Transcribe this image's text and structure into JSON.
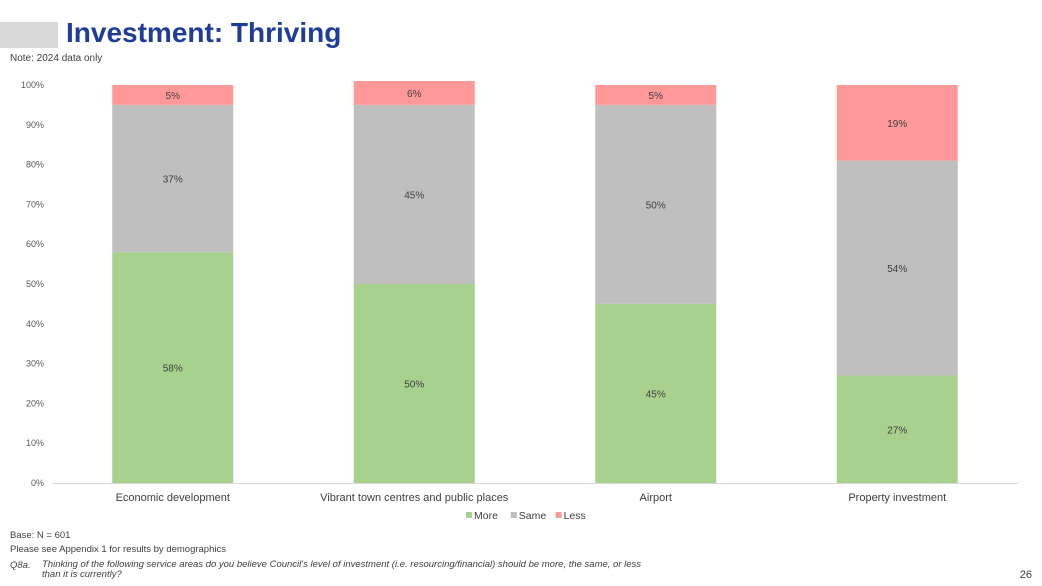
{
  "slide": {
    "title": "Investment: Thriving",
    "note": "Note: 2024 data only",
    "base": "Base: N = 601",
    "appendix": "Please see Appendix 1 for results by demographics",
    "question_code": "Q8a.",
    "question_text": "Thinking of the following service areas do you believe Council's level of investment (i.e. resourcing/financial) should be more, the same, or less than it is currently?",
    "page_number": "26"
  },
  "chart_data": {
    "type": "bar",
    "stacked": true,
    "categories": [
      "Economic development",
      "Vibrant town centres and public places",
      "Airport",
      "Property investment"
    ],
    "series": [
      {
        "name": "More",
        "values": [
          58,
          50,
          45,
          27
        ],
        "labels": [
          "58%",
          "50%",
          "45%",
          "27%"
        ],
        "color": "#a9d18e"
      },
      {
        "name": "Same",
        "values": [
          37,
          45,
          50,
          54
        ],
        "labels": [
          "37%",
          "45%",
          "50%",
          "54%"
        ],
        "color": "#bfbfbf"
      },
      {
        "name": "Less",
        "values": [
          5,
          6,
          5,
          19
        ],
        "labels": [
          "5%",
          "6%",
          "5%",
          "19%"
        ],
        "color": "#ff9999"
      }
    ],
    "yticks": [
      "0%",
      "10%",
      "20%",
      "30%",
      "40%",
      "50%",
      "60%",
      "70%",
      "80%",
      "90%",
      "100%"
    ],
    "ylim": [
      0,
      100
    ],
    "legend_position": "bottom",
    "grid": false
  }
}
